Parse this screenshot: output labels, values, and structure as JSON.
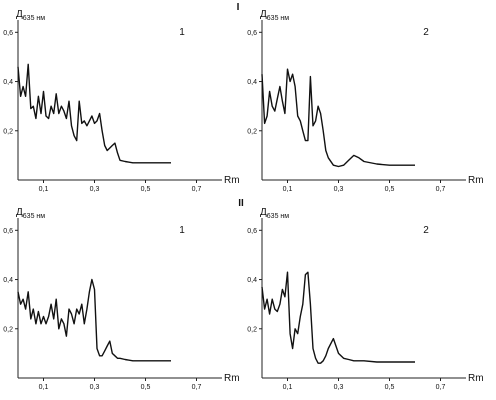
{
  "chart_data": [
    {
      "type": "line",
      "group": "I",
      "panel_label": "1",
      "ylabel_main": "Д",
      "ylabel_sub": "635 нм",
      "xlabel": "Rm",
      "xlim": [
        0,
        0.8
      ],
      "ylim": [
        0,
        0.65
      ],
      "xticks": [
        "0,1",
        "0,3",
        "0,5",
        "0,7"
      ],
      "yticks": [
        "0,2",
        "0,4",
        "0,6"
      ],
      "x": [
        0.0,
        0.01,
        0.02,
        0.03,
        0.04,
        0.05,
        0.06,
        0.07,
        0.08,
        0.09,
        0.1,
        0.11,
        0.12,
        0.13,
        0.14,
        0.15,
        0.16,
        0.17,
        0.18,
        0.19,
        0.2,
        0.21,
        0.22,
        0.23,
        0.24,
        0.25,
        0.26,
        0.27,
        0.28,
        0.29,
        0.3,
        0.31,
        0.32,
        0.33,
        0.34,
        0.35,
        0.36,
        0.37,
        0.38,
        0.39,
        0.4,
        0.42,
        0.45,
        0.5,
        0.55,
        0.6
      ],
      "y": [
        0.46,
        0.34,
        0.38,
        0.34,
        0.47,
        0.29,
        0.3,
        0.25,
        0.34,
        0.27,
        0.36,
        0.26,
        0.25,
        0.3,
        0.27,
        0.35,
        0.27,
        0.3,
        0.28,
        0.25,
        0.32,
        0.22,
        0.18,
        0.16,
        0.32,
        0.23,
        0.24,
        0.22,
        0.24,
        0.26,
        0.23,
        0.24,
        0.27,
        0.2,
        0.14,
        0.12,
        0.13,
        0.14,
        0.15,
        0.11,
        0.08,
        0.075,
        0.07,
        0.07,
        0.07,
        0.07
      ]
    },
    {
      "type": "line",
      "group": "I",
      "panel_label": "2",
      "ylabel_main": "Д",
      "ylabel_sub": "635 нм",
      "xlabel": "Rm",
      "xlim": [
        0,
        0.8
      ],
      "ylim": [
        0,
        0.65
      ],
      "xticks": [
        "0,1",
        "0,3",
        "0,5",
        "0,7"
      ],
      "yticks": [
        "0,2",
        "0,4",
        "0,6"
      ],
      "x": [
        0.0,
        0.01,
        0.02,
        0.03,
        0.04,
        0.05,
        0.06,
        0.07,
        0.08,
        0.09,
        0.1,
        0.11,
        0.12,
        0.13,
        0.14,
        0.15,
        0.16,
        0.17,
        0.18,
        0.19,
        0.2,
        0.21,
        0.22,
        0.23,
        0.24,
        0.25,
        0.26,
        0.28,
        0.3,
        0.32,
        0.34,
        0.36,
        0.38,
        0.4,
        0.45,
        0.5,
        0.55,
        0.6
      ],
      "y": [
        0.43,
        0.23,
        0.26,
        0.36,
        0.3,
        0.28,
        0.33,
        0.38,
        0.32,
        0.27,
        0.45,
        0.4,
        0.43,
        0.38,
        0.26,
        0.24,
        0.2,
        0.16,
        0.16,
        0.42,
        0.22,
        0.24,
        0.3,
        0.27,
        0.2,
        0.12,
        0.09,
        0.06,
        0.055,
        0.06,
        0.08,
        0.1,
        0.09,
        0.075,
        0.065,
        0.06,
        0.06,
        0.06
      ]
    },
    {
      "type": "line",
      "group": "II",
      "panel_label": "1",
      "ylabel_main": "Д",
      "ylabel_sub": "635 нм",
      "xlabel": "Rm",
      "xlim": [
        0,
        0.8
      ],
      "ylim": [
        0,
        0.65
      ],
      "xticks": [
        "0,1",
        "0,3",
        "0,5",
        "0,7"
      ],
      "yticks": [
        "0,2",
        "0,4",
        "0,6"
      ],
      "x": [
        0.0,
        0.01,
        0.02,
        0.03,
        0.04,
        0.05,
        0.06,
        0.07,
        0.08,
        0.09,
        0.1,
        0.11,
        0.12,
        0.13,
        0.14,
        0.15,
        0.16,
        0.17,
        0.18,
        0.19,
        0.2,
        0.21,
        0.22,
        0.23,
        0.24,
        0.25,
        0.26,
        0.27,
        0.28,
        0.29,
        0.3,
        0.31,
        0.32,
        0.33,
        0.34,
        0.35,
        0.36,
        0.37,
        0.38,
        0.39,
        0.4,
        0.42,
        0.45,
        0.5,
        0.55,
        0.6
      ],
      "y": [
        0.35,
        0.3,
        0.32,
        0.28,
        0.35,
        0.24,
        0.28,
        0.22,
        0.27,
        0.22,
        0.25,
        0.22,
        0.25,
        0.3,
        0.24,
        0.32,
        0.2,
        0.24,
        0.22,
        0.17,
        0.28,
        0.26,
        0.22,
        0.28,
        0.26,
        0.3,
        0.22,
        0.28,
        0.35,
        0.4,
        0.36,
        0.12,
        0.09,
        0.09,
        0.11,
        0.13,
        0.15,
        0.1,
        0.09,
        0.08,
        0.08,
        0.075,
        0.07,
        0.07,
        0.07,
        0.07
      ]
    },
    {
      "type": "line",
      "group": "II",
      "panel_label": "2",
      "ylabel_main": "Д",
      "ylabel_sub": "635 нм",
      "xlabel": "Rm",
      "xlim": [
        0,
        0.8
      ],
      "ylim": [
        0,
        0.65
      ],
      "xticks": [
        "0,1",
        "0,3",
        "0,5",
        "0,7"
      ],
      "yticks": [
        "0,2",
        "0,4",
        "0,6"
      ],
      "x": [
        0.0,
        0.01,
        0.02,
        0.03,
        0.04,
        0.05,
        0.06,
        0.07,
        0.08,
        0.09,
        0.1,
        0.11,
        0.12,
        0.13,
        0.14,
        0.15,
        0.16,
        0.17,
        0.18,
        0.19,
        0.2,
        0.21,
        0.22,
        0.23,
        0.24,
        0.25,
        0.26,
        0.28,
        0.3,
        0.32,
        0.34,
        0.36,
        0.38,
        0.4,
        0.45,
        0.5,
        0.55,
        0.6
      ],
      "y": [
        0.37,
        0.28,
        0.32,
        0.26,
        0.32,
        0.28,
        0.27,
        0.3,
        0.36,
        0.33,
        0.43,
        0.18,
        0.12,
        0.2,
        0.18,
        0.25,
        0.3,
        0.42,
        0.43,
        0.3,
        0.12,
        0.08,
        0.06,
        0.06,
        0.07,
        0.09,
        0.12,
        0.16,
        0.1,
        0.08,
        0.075,
        0.07,
        0.07,
        0.07,
        0.065,
        0.065,
        0.065,
        0.065
      ]
    }
  ]
}
